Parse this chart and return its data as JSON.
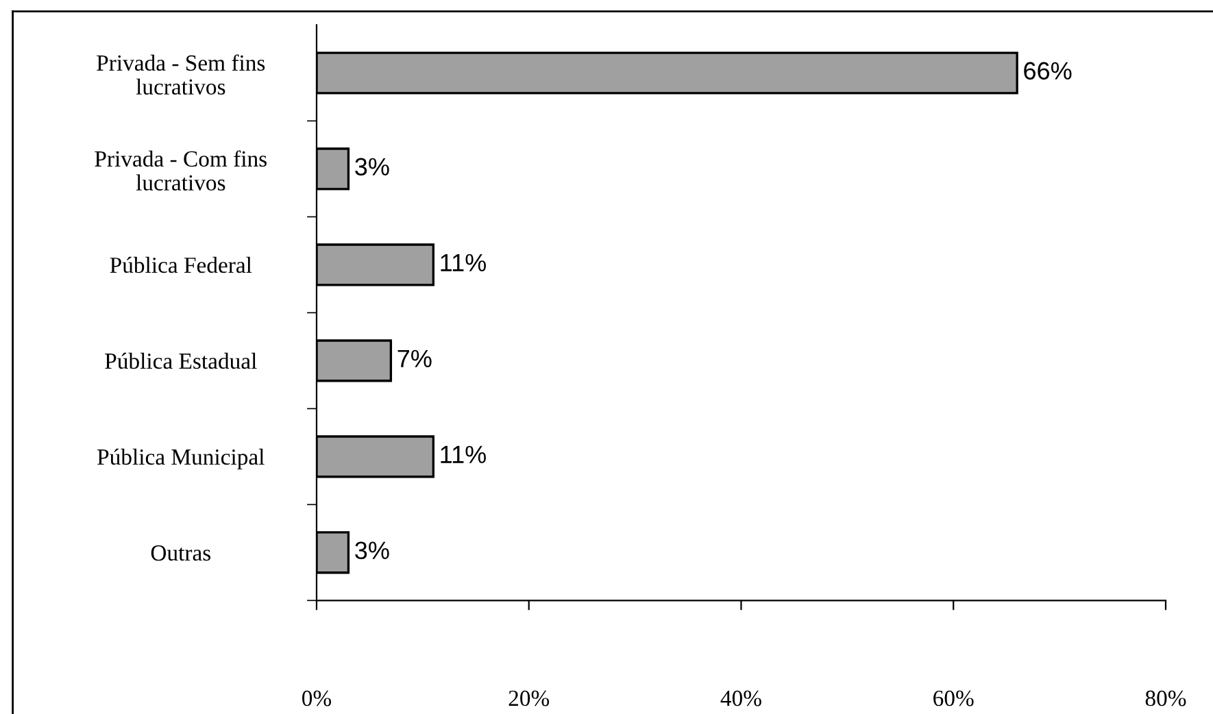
{
  "chart_data": {
    "type": "bar",
    "orientation": "horizontal",
    "categories": [
      "Privada - Sem fins\nlucrativos",
      "Privada - Com fins\nlucrativos",
      "Pública Federal",
      "Pública Estadual",
      "Pública Municipal",
      "Outras"
    ],
    "values": [
      66,
      3,
      11,
      7,
      11,
      3
    ],
    "value_labels": [
      "66%",
      "3%",
      "11%",
      "7%",
      "11%",
      "3%"
    ],
    "color": "#a0a0a0",
    "xlim": [
      0,
      80
    ],
    "xticks": [
      {
        "value": 0,
        "label": "0%"
      },
      {
        "value": 20,
        "label": "20%"
      },
      {
        "value": 40,
        "label": "40%"
      },
      {
        "value": 60,
        "label": "60%"
      },
      {
        "value": 80,
        "label": "80%"
      }
    ],
    "grid": false,
    "legend": false
  }
}
